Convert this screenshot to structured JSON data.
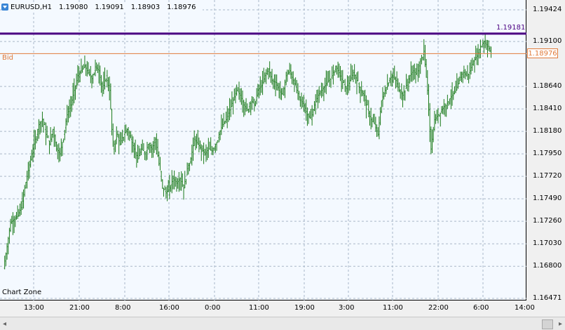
{
  "header": {
    "symbol": "EURUSD,H1",
    "open": "1.19080",
    "high": "1.19091",
    "low": "1.18903",
    "close": "1.18976"
  },
  "chart_zone_label": "Chart Zone",
  "bid_label": "Bid",
  "bid_price": "1.18976",
  "hline_price": "1.19181",
  "colors": {
    "candle": "#1a7a1a",
    "hline": "#4b0082",
    "bid": "#e07a3a",
    "grid": "#a9b7c8",
    "background": "#f4f9ff"
  },
  "y_axis": [
    "1.19424",
    "1.19100",
    "1.18640",
    "1.18410",
    "1.18180",
    "1.17950",
    "1.17720",
    "1.17490",
    "1.17260",
    "1.17030",
    "1.16800",
    "1.16471"
  ],
  "x_axis": [
    "13:00",
    "21:00",
    "8:00",
    "16:00",
    "0:00",
    "11:00",
    "19:00",
    "3:00",
    "11:00",
    "22:00",
    "6:00",
    "14:00"
  ],
  "scrollbar": {
    "left_arrow": "◂",
    "right_arrow": "▸"
  },
  "chart_data": {
    "type": "candlestick",
    "y_range": [
      1.16471,
      1.19424
    ],
    "close_path": [
      [
        0,
        1.1678
      ],
      [
        3,
        1.17
      ],
      [
        6,
        1.1725
      ],
      [
        9,
        1.1728
      ],
      [
        12,
        1.1732
      ],
      [
        15,
        1.174
      ],
      [
        18,
        1.176
      ],
      [
        21,
        1.1778
      ],
      [
        24,
        1.1795
      ],
      [
        27,
        1.181
      ],
      [
        30,
        1.1825
      ],
      [
        33,
        1.183
      ],
      [
        36,
        1.1815
      ],
      [
        39,
        1.1805
      ],
      [
        42,
        1.182
      ],
      [
        45,
        1.18
      ],
      [
        48,
        1.1795
      ],
      [
        51,
        1.1815
      ],
      [
        54,
        1.1835
      ],
      [
        57,
        1.1845
      ],
      [
        60,
        1.186
      ],
      [
        63,
        1.1875
      ],
      [
        66,
        1.188
      ],
      [
        69,
        1.1885
      ],
      [
        72,
        1.1878
      ],
      [
        75,
        1.1872
      ],
      [
        78,
        1.1884
      ],
      [
        81,
        1.188
      ],
      [
        84,
        1.186
      ],
      [
        87,
        1.1875
      ],
      [
        90,
        1.186
      ],
      [
        93,
        1.18
      ],
      [
        96,
        1.1815
      ],
      [
        99,
        1.1805
      ],
      [
        102,
        1.1815
      ],
      [
        105,
        1.182
      ],
      [
        108,
        1.181
      ],
      [
        111,
        1.18
      ],
      [
        114,
        1.179
      ],
      [
        117,
        1.18
      ],
      [
        120,
        1.1795
      ],
      [
        123,
        1.1805
      ],
      [
        126,
        1.18
      ],
      [
        129,
        1.181
      ],
      [
        132,
        1.1785
      ],
      [
        135,
        1.176
      ],
      [
        138,
        1.1755
      ],
      [
        141,
        1.176
      ],
      [
        144,
        1.177
      ],
      [
        147,
        1.1765
      ],
      [
        150,
        1.177
      ],
      [
        153,
        1.176
      ],
      [
        156,
        1.178
      ],
      [
        159,
        1.179
      ],
      [
        162,
        1.181
      ],
      [
        165,
        1.1805
      ],
      [
        168,
        1.18
      ],
      [
        171,
        1.1795
      ],
      [
        174,
        1.18
      ],
      [
        177,
        1.1798
      ],
      [
        180,
        1.1805
      ],
      [
        183,
        1.1815
      ],
      [
        186,
        1.1825
      ],
      [
        189,
        1.183
      ],
      [
        192,
        1.184
      ],
      [
        195,
        1.185
      ],
      [
        198,
        1.186
      ],
      [
        201,
        1.1855
      ],
      [
        204,
        1.1845
      ],
      [
        207,
        1.184
      ],
      [
        210,
        1.185
      ],
      [
        213,
        1.1845
      ],
      [
        216,
        1.186
      ],
      [
        219,
        1.1865
      ],
      [
        222,
        1.1875
      ],
      [
        225,
        1.1882
      ],
      [
        228,
        1.187
      ],
      [
        231,
        1.1868
      ],
      [
        234,
        1.186
      ],
      [
        237,
        1.1855
      ],
      [
        240,
        1.1875
      ],
      [
        243,
        1.188
      ],
      [
        246,
        1.187
      ],
      [
        249,
        1.186
      ],
      [
        252,
        1.185
      ],
      [
        255,
        1.1845
      ],
      [
        258,
        1.1835
      ],
      [
        261,
        1.183
      ],
      [
        264,
        1.1845
      ],
      [
        267,
        1.1855
      ],
      [
        270,
        1.186
      ],
      [
        273,
        1.1865
      ],
      [
        276,
        1.187
      ],
      [
        279,
        1.1875
      ],
      [
        282,
        1.1885
      ],
      [
        285,
        1.1878
      ],
      [
        288,
        1.1868
      ],
      [
        291,
        1.1862
      ],
      [
        294,
        1.187
      ],
      [
        297,
        1.1878
      ],
      [
        300,
        1.187
      ],
      [
        303,
        1.186
      ],
      [
        306,
        1.1855
      ],
      [
        309,
        1.184
      ],
      [
        312,
        1.183
      ],
      [
        315,
        1.1825
      ],
      [
        318,
        1.1815
      ],
      [
        321,
        1.185
      ],
      [
        324,
        1.186
      ],
      [
        327,
        1.187
      ],
      [
        330,
        1.1875
      ],
      [
        333,
        1.187
      ],
      [
        336,
        1.186
      ],
      [
        339,
        1.1855
      ],
      [
        342,
        1.1865
      ],
      [
        345,
        1.1875
      ],
      [
        348,
        1.188
      ],
      [
        351,
        1.1875
      ],
      [
        354,
        1.189
      ],
      [
        357,
        1.19
      ],
      [
        360,
        1.186
      ],
      [
        363,
        1.18
      ],
      [
        366,
        1.183
      ],
      [
        369,
        1.1835
      ],
      [
        372,
        1.184
      ],
      [
        375,
        1.1845
      ],
      [
        378,
        1.185
      ],
      [
        381,
        1.1855
      ],
      [
        384,
        1.186
      ],
      [
        387,
        1.187
      ],
      [
        390,
        1.188
      ],
      [
        393,
        1.1875
      ],
      [
        396,
        1.188
      ],
      [
        399,
        1.189
      ],
      [
        402,
        1.1895
      ],
      [
        405,
        1.1905
      ],
      [
        408,
        1.191
      ],
      [
        411,
        1.1905
      ],
      [
        414,
        1.1898
      ]
    ],
    "horizontal_line": 1.19181,
    "bid_line": 1.18976
  }
}
